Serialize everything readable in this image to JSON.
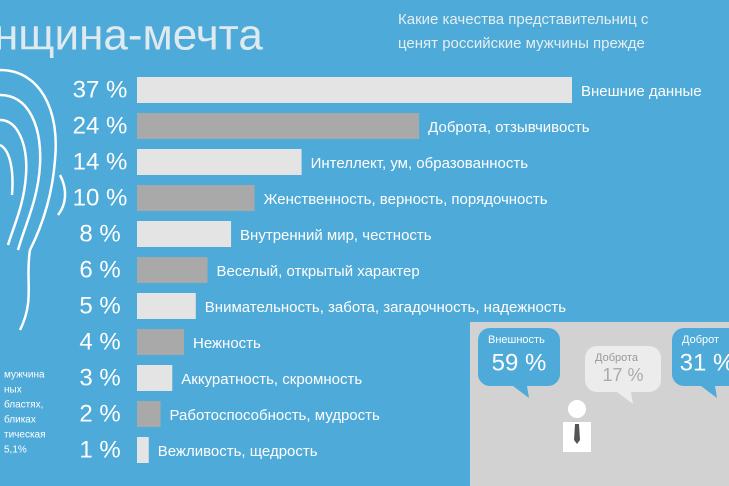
{
  "chart_data": {
    "type": "bar",
    "orientation": "horizontal",
    "title": "нщина-мечта",
    "subtitle": [
      "Какие качества представительниц с",
      "ценят российские мужчины прежде"
    ],
    "categories": [
      "Внешние данные",
      "Доброта, отзывчивость",
      "Интеллект, ум, образованность",
      "Женственность, верность, порядочность",
      "Внутренний мир, честность",
      "Веселый, открытый характер",
      "Внимательность, забота, загадочность, надежность",
      "Нежность",
      "Аккуратность, скромность",
      "Работоспособность, мудрость",
      "Вежливость, щедрость"
    ],
    "values": [
      37,
      24,
      14,
      10,
      8,
      6,
      5,
      4,
      3,
      2,
      1
    ],
    "value_labels": [
      "37 %",
      "24 %",
      "14 %",
      "10 %",
      "8 %",
      "6 %",
      "5 %",
      "4 %",
      "3 %",
      "2 %",
      "1 %"
    ],
    "colors": [
      "#e4e4e4",
      "#a9a9a9",
      "#e4e4e4",
      "#a9a9a9",
      "#e4e4e4",
      "#a9a9a9",
      "#e4e4e4",
      "#a9a9a9",
      "#e4e4e4",
      "#a9a9a9",
      "#e4e4e4"
    ],
    "side_note": [
      "мужчина",
      "ных",
      "бластях,",
      "бликах",
      "тическая",
      "5,1%"
    ],
    "callouts": [
      {
        "label": "Внешность",
        "value": 59,
        "value_label": "59 %",
        "color": "#4eaad8"
      },
      {
        "label": "Доброта",
        "value": 17,
        "value_label": "17 %",
        "color": "#ececec"
      },
      {
        "label": "Доброт",
        "value": 31,
        "value_label": "31 %",
        "color": "#4eaad8"
      }
    ]
  }
}
